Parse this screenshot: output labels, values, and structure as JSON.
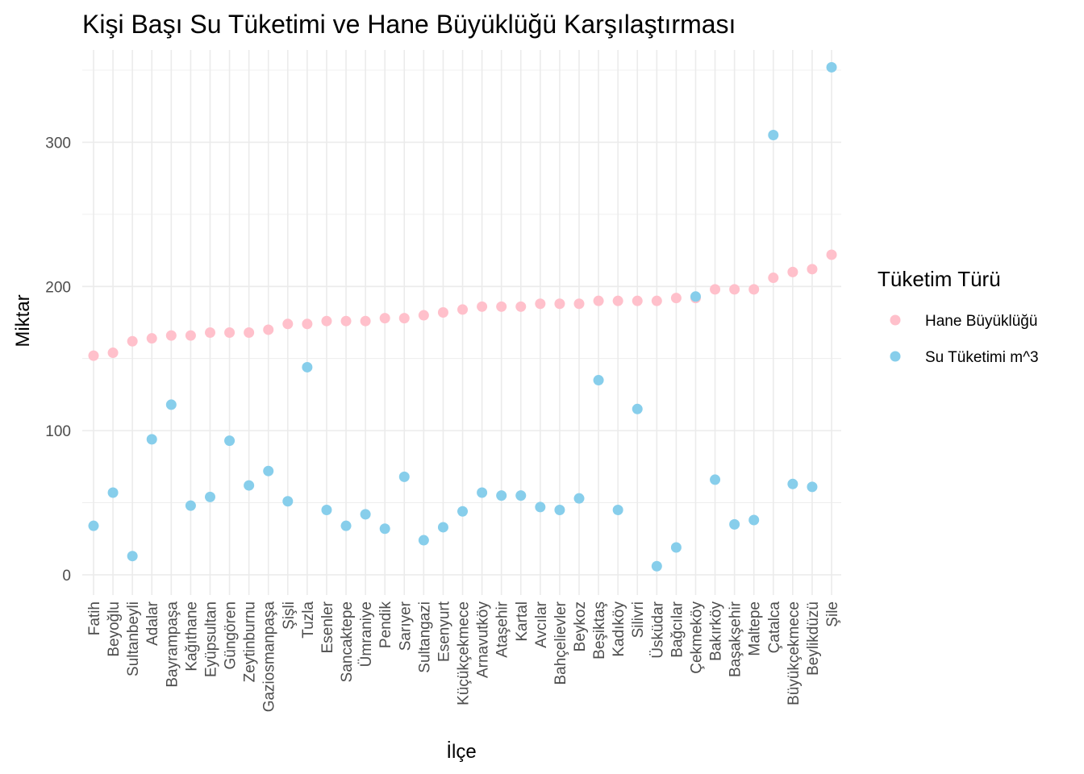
{
  "chart_data": {
    "type": "scatter",
    "title": "Kişi Başı Su Tüketimi ve Hane Büyüklüğü Karşılaştırması",
    "xlabel": "İlçe",
    "ylabel": "Miktar",
    "ylim": [
      -14,
      364
    ],
    "yticks": [
      0,
      100,
      200,
      300
    ],
    "grid": true,
    "legend_position": "right",
    "legend_title": "Tüketim Türü",
    "categories": [
      "Fatih",
      "Beyoğlu",
      "Sultanbeyli",
      "Adalar",
      "Bayrampaşa",
      "Kağıthane",
      "Eyüpsultan",
      "Güngören",
      "Zeytinburnu",
      "Gaziosmanpaşa",
      "Şişli",
      "Tuzla",
      "Esenler",
      "Sancaktepe",
      "Ümraniye",
      "Pendik",
      "Sarıyer",
      "Sultangazi",
      "Esenyurt",
      "Küçükçekmece",
      "Arnavutköy",
      "Ataşehir",
      "Kartal",
      "Avcılar",
      "Bahçelievler",
      "Beykoz",
      "Beşiktaş",
      "Kadıköy",
      "Silivri",
      "Üsküdar",
      "Bağcılar",
      "Çekmeköy",
      "Bakırköy",
      "Başakşehir",
      "Maltepe",
      "Çatalca",
      "Büyükçekmece",
      "Beylikdüzü",
      "Şile"
    ],
    "series": [
      {
        "name": "Hane Büyüklüğü",
        "color": "#FFC0CB",
        "values": [
          152,
          154,
          162,
          164,
          166,
          166,
          168,
          168,
          168,
          170,
          174,
          174,
          176,
          176,
          176,
          178,
          178,
          180,
          182,
          184,
          186,
          186,
          186,
          188,
          188,
          188,
          190,
          190,
          190,
          190,
          192,
          192,
          198,
          198,
          198,
          206,
          210,
          212,
          222
        ]
      },
      {
        "name": "Su Tüketimi m^3",
        "color": "#87CEEB",
        "values": [
          34,
          57,
          13,
          94,
          118,
          48,
          54,
          93,
          62,
          72,
          51,
          144,
          45,
          34,
          42,
          32,
          68,
          24,
          33,
          44,
          57,
          55,
          55,
          47,
          45,
          53,
          135,
          45,
          115,
          6,
          19,
          193,
          66,
          35,
          38,
          305,
          63,
          61,
          352
        ]
      }
    ]
  }
}
